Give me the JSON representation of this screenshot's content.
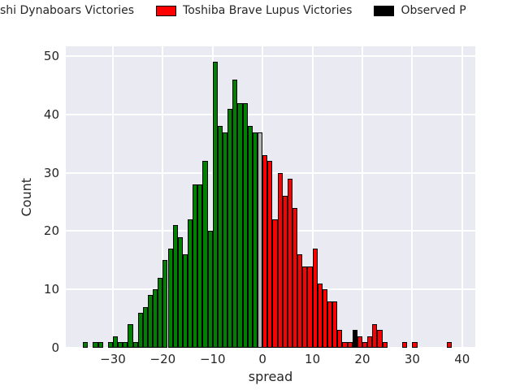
{
  "legend": {
    "items": [
      {
        "label": "shi Dynaboars Victories",
        "series": "green",
        "swatch_visible": false
      },
      {
        "label": "Toshiba Brave Lupus Victories",
        "series": "red",
        "swatch_visible": true
      },
      {
        "label": "Observed P",
        "series": "obs",
        "swatch_visible": true
      }
    ]
  },
  "chart_data": {
    "type": "bar",
    "subtype": "histogram",
    "title": "",
    "xlabel": "spread",
    "ylabel": "Count",
    "bin_width": 1,
    "xlim": [
      -39.44,
      42.64
    ],
    "ylim": [
      0,
      51.7
    ],
    "grid": true,
    "plot_bg": "#eaeaf2",
    "grid_color": "#ffffff",
    "bar_edge_color": "#000000",
    "series_colors": {
      "green": "#008000",
      "red": "#ff0000",
      "tie": "#b3b3b3",
      "obs": "#000000"
    },
    "series_meaning": {
      "green": "Dynaboars victory (negative spread)",
      "tie": "tie",
      "red": "Toshiba Brave Lupus victory (positive spread)",
      "obs": "observed point spread marker"
    },
    "x_ticks": [
      {
        "v": -30,
        "label": "−30"
      },
      {
        "v": -20,
        "label": "−20"
      },
      {
        "v": -10,
        "label": "−10"
      },
      {
        "v": 0,
        "label": "0"
      },
      {
        "v": 10,
        "label": "10"
      },
      {
        "v": 20,
        "label": "20"
      },
      {
        "v": 30,
        "label": "30"
      },
      {
        "v": 40,
        "label": "40"
      }
    ],
    "y_ticks": [
      {
        "v": 0,
        "label": "0"
      },
      {
        "v": 10,
        "label": "10"
      },
      {
        "v": 20,
        "label": "20"
      },
      {
        "v": 30,
        "label": "30"
      },
      {
        "v": 40,
        "label": "40"
      },
      {
        "v": 50,
        "label": "50"
      }
    ],
    "bars": [
      [
        -36,
        1,
        "green"
      ],
      [
        -34,
        1,
        "green"
      ],
      [
        -33,
        1,
        "green"
      ],
      [
        -31,
        1,
        "green"
      ],
      [
        -30,
        2,
        "green"
      ],
      [
        -29,
        1,
        "green"
      ],
      [
        -28,
        1,
        "green"
      ],
      [
        -27,
        4,
        "green"
      ],
      [
        -26,
        1,
        "green"
      ],
      [
        -25,
        6,
        "green"
      ],
      [
        -24,
        7,
        "green"
      ],
      [
        -23,
        9,
        "green"
      ],
      [
        -22,
        10,
        "green"
      ],
      [
        -21,
        12,
        "green"
      ],
      [
        -20,
        15,
        "green"
      ],
      [
        -19,
        17,
        "green"
      ],
      [
        -18,
        21,
        "green"
      ],
      [
        -17,
        19,
        "green"
      ],
      [
        -16,
        16,
        "green"
      ],
      [
        -15,
        22,
        "green"
      ],
      [
        -14,
        28,
        "green"
      ],
      [
        -13,
        28,
        "green"
      ],
      [
        -12,
        32,
        "green"
      ],
      [
        -11,
        20,
        "green"
      ],
      [
        -10,
        49,
        "green"
      ],
      [
        -9,
        38,
        "green"
      ],
      [
        -8,
        37,
        "green"
      ],
      [
        -7,
        41,
        "green"
      ],
      [
        -6,
        46,
        "green"
      ],
      [
        -5,
        42,
        "green"
      ],
      [
        -4,
        42,
        "green"
      ],
      [
        -3,
        38,
        "green"
      ],
      [
        -2,
        37,
        "green"
      ],
      [
        -1,
        37,
        "tie"
      ],
      [
        0,
        33,
        "red"
      ],
      [
        1,
        32,
        "red"
      ],
      [
        2,
        22,
        "red"
      ],
      [
        3,
        30,
        "red"
      ],
      [
        4,
        26,
        "red"
      ],
      [
        5,
        29,
        "red"
      ],
      [
        6,
        24,
        "red"
      ],
      [
        7,
        16,
        "red"
      ],
      [
        8,
        14,
        "red"
      ],
      [
        9,
        14,
        "red"
      ],
      [
        10,
        17,
        "red"
      ],
      [
        11,
        11,
        "red"
      ],
      [
        12,
        10,
        "red"
      ],
      [
        13,
        8,
        "red"
      ],
      [
        14,
        8,
        "red"
      ],
      [
        15,
        3,
        "red"
      ],
      [
        16,
        1,
        "red"
      ],
      [
        17,
        1,
        "red"
      ],
      [
        18,
        3,
        "obs"
      ],
      [
        19,
        2,
        "red"
      ],
      [
        20,
        1,
        "red"
      ],
      [
        21,
        2,
        "red"
      ],
      [
        22,
        4,
        "red"
      ],
      [
        23,
        3,
        "red"
      ],
      [
        24,
        1,
        "red"
      ],
      [
        28,
        1,
        "red"
      ],
      [
        30,
        1,
        "red"
      ],
      [
        37,
        1,
        "red"
      ]
    ]
  }
}
